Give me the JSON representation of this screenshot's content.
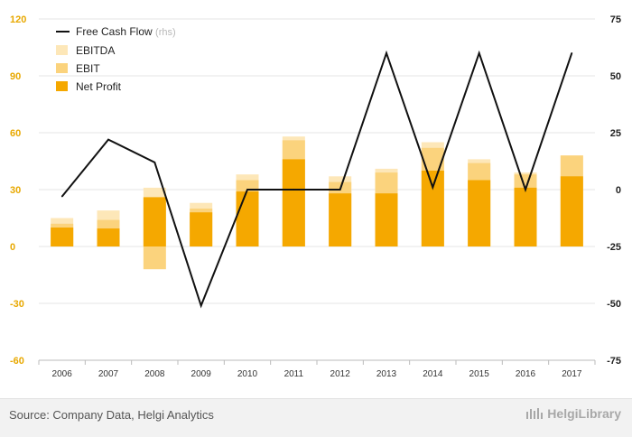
{
  "chart_data": {
    "type": "bar+line",
    "categories": [
      "2006",
      "2007",
      "2008",
      "2009",
      "2010",
      "2011",
      "2012",
      "2013",
      "2014",
      "2015",
      "2016",
      "2017"
    ],
    "series": [
      {
        "name": "EBITDA",
        "values": [
          15,
          19,
          31,
          23,
          38,
          58,
          37,
          41,
          55,
          46,
          39,
          48
        ],
        "axis": "left",
        "color": "#fde7b8"
      },
      {
        "name": "EBIT",
        "values": [
          12,
          14,
          -12,
          20,
          35,
          56,
          34,
          39,
          52,
          44,
          38,
          48
        ],
        "axis": "left",
        "color": "#fbd37d"
      },
      {
        "name": "Net Profit",
        "values": [
          10,
          9.5,
          26,
          18,
          29,
          46,
          28,
          28,
          40,
          35,
          31,
          37
        ],
        "axis": "left",
        "color": "#f5a800"
      },
      {
        "name": "Free Cash Flow",
        "sub": "(rhs)",
        "values": [
          -3,
          22,
          12,
          -51,
          0,
          0,
          0,
          60,
          1,
          60,
          0,
          60
        ],
        "axis": "right",
        "color": "#111111"
      }
    ],
    "left_axis": {
      "min": -60,
      "max": 120,
      "ticks": [
        -60,
        -30,
        0,
        30,
        60,
        90,
        120
      ]
    },
    "right_axis": {
      "min": -75,
      "max": 75,
      "ticks": [
        -75,
        -50,
        -25,
        0,
        25,
        50,
        75
      ]
    },
    "legend_position": "top-left",
    "gridlines": true
  },
  "legend": {
    "fcf_label": "Free Cash Flow",
    "fcf_sub": "(rhs)",
    "ebitda_label": "EBITDA",
    "ebit_label": "EBIT",
    "net_profit_label": "Net Profit"
  },
  "footer": {
    "source": "Source: Company Data, Helgi Analytics",
    "brand": "HelgiLibrary"
  }
}
